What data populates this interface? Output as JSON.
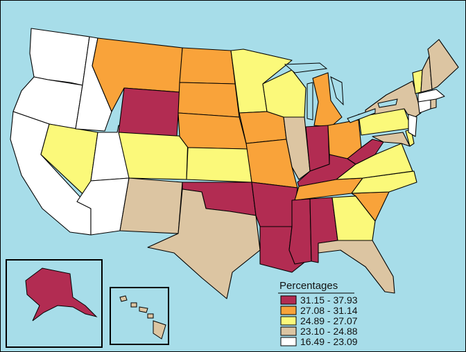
{
  "legend": {
    "title": "Percentages",
    "classes": [
      {
        "label": "31.15 - 37.93",
        "color": "#b22c52"
      },
      {
        "label": "27.08 - 31.14",
        "color": "#f9a33a"
      },
      {
        "label": "24.89 - 27.07",
        "color": "#fbf97a"
      },
      {
        "label": "23.10 - 24.88",
        "color": "#dcc5a2"
      },
      {
        "label": "16.49 - 23.09",
        "color": "#ffffff"
      }
    ]
  },
  "colors": {
    "water": "#a7dde9",
    "border": "#000000"
  },
  "state_classes": {
    "31.15 - 37.93": [
      "WY",
      "OK",
      "AR",
      "LA",
      "MS",
      "AL",
      "IN",
      "KY",
      "WV",
      "AK"
    ],
    "27.08 - 31.14": [
      "MT",
      "ND",
      "SD",
      "NE",
      "IA",
      "MO",
      "MI",
      "OH",
      "TN",
      "SC"
    ],
    "24.89 - 27.07": [
      "NV",
      "CO",
      "KS",
      "MN",
      "WI",
      "PA",
      "VA",
      "NC",
      "GA",
      "VT",
      "DE"
    ],
    "23.10 - 24.88": [
      "NM",
      "TX",
      "IL",
      "NY",
      "FL",
      "ME",
      "NH",
      "MD",
      "RI",
      "HI"
    ],
    "16.49 - 23.09": [
      "WA",
      "OR",
      "CA",
      "ID",
      "UT",
      "AZ",
      "NJ",
      "CT",
      "MA"
    ]
  }
}
